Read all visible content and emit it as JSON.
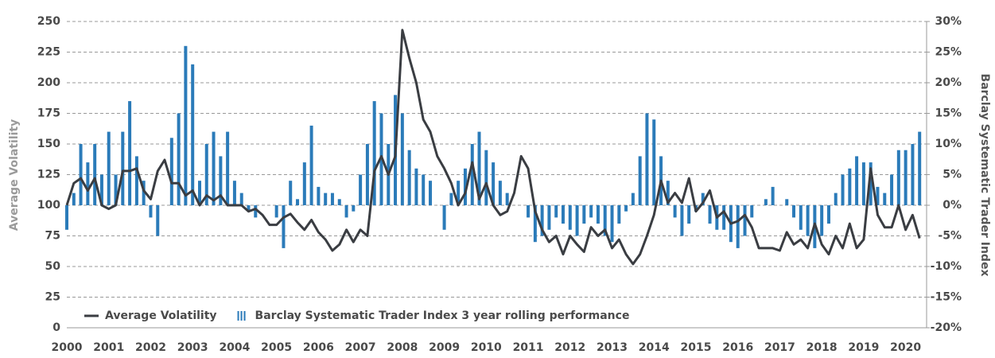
{
  "chart_data": {
    "type": "combo",
    "y_label": "Average Volatility",
    "y2_label": "Barclay Systematic Trader Index",
    "legend": "bottom-left",
    "grid": true,
    "xlim": [
      2000,
      2020.5
    ],
    "xticks": [
      2000,
      2001,
      2002,
      2003,
      2004,
      2005,
      2006,
      2007,
      2008,
      2009,
      2010,
      2011,
      2012,
      2013,
      2014,
      2015,
      2016,
      2017,
      2018,
      2019,
      2020
    ],
    "ylim": [
      0,
      250
    ],
    "yticks": [
      0,
      25,
      50,
      75,
      100,
      125,
      150,
      175,
      200,
      225,
      250
    ],
    "y2lim": [
      -20,
      30
    ],
    "y2ticks": [
      {
        "value": -20,
        "label": "-20%"
      },
      {
        "value": -15,
        "label": "-15%"
      },
      {
        "value": -10,
        "label": "-10%"
      },
      {
        "value": -5,
        "label": "-5%"
      },
      {
        "value": 0,
        "label": "0%"
      },
      {
        "value": 5,
        "label": "5%"
      },
      {
        "value": 10,
        "label": "10%"
      },
      {
        "value": 15,
        "label": "15%"
      },
      {
        "value": 20,
        "label": "20%"
      },
      {
        "value": 25,
        "label": "25%"
      },
      {
        "value": 30,
        "label": "30%"
      }
    ],
    "x": [
      2000,
      2000.167,
      2000.333,
      2000.5,
      2000.667,
      2000.833,
      2001,
      2001.167,
      2001.333,
      2001.5,
      2001.667,
      2001.833,
      2002,
      2002.167,
      2002.333,
      2002.5,
      2002.667,
      2002.833,
      2003,
      2003.167,
      2003.333,
      2003.5,
      2003.667,
      2003.833,
      2004,
      2004.167,
      2004.333,
      2004.5,
      2004.667,
      2004.833,
      2005,
      2005.167,
      2005.333,
      2005.5,
      2005.667,
      2005.833,
      2006,
      2006.167,
      2006.333,
      2006.5,
      2006.667,
      2006.833,
      2007,
      2007.167,
      2007.333,
      2007.5,
      2007.667,
      2007.833,
      2008,
      2008.167,
      2008.333,
      2008.5,
      2008.667,
      2008.833,
      2009,
      2009.167,
      2009.333,
      2009.5,
      2009.667,
      2009.833,
      2010,
      2010.167,
      2010.333,
      2010.5,
      2010.667,
      2010.833,
      2011,
      2011.167,
      2011.333,
      2011.5,
      2011.667,
      2011.833,
      2012,
      2012.167,
      2012.333,
      2012.5,
      2012.667,
      2012.833,
      2013,
      2013.167,
      2013.333,
      2013.5,
      2013.667,
      2013.833,
      2014,
      2014.167,
      2014.333,
      2014.5,
      2014.667,
      2014.833,
      2015,
      2015.167,
      2015.333,
      2015.5,
      2015.667,
      2015.833,
      2016,
      2016.167,
      2016.333,
      2016.5,
      2016.667,
      2016.833,
      2017,
      2017.167,
      2017.333,
      2017.5,
      2017.667,
      2017.833,
      2018,
      2018.167,
      2018.333,
      2018.5,
      2018.667,
      2018.833,
      2019,
      2019.167,
      2019.333,
      2019.5,
      2019.667,
      2019.833,
      2020,
      2020.167,
      2020.333
    ],
    "series": [
      {
        "name": "Barclay Systematic Trader Index 3 year rolling performance",
        "type": "bar",
        "axis": "y2",
        "color": "#2b7bb9",
        "values": [
          -4,
          2,
          10,
          7,
          10,
          5,
          12,
          5,
          12,
          17,
          8,
          4,
          -2,
          -5,
          0,
          11,
          15,
          26,
          23,
          4,
          10,
          12,
          8,
          12,
          4,
          2,
          -1,
          -2,
          0,
          0,
          -2,
          -7,
          4,
          1,
          7,
          13,
          3,
          2,
          2,
          1,
          -2,
          -1,
          5,
          10,
          17,
          15,
          10,
          18,
          15,
          9,
          6,
          5,
          4,
          0,
          -4,
          2,
          4,
          6,
          10,
          12,
          9,
          7,
          4,
          2,
          0,
          0,
          -2,
          -6,
          -5,
          -4,
          -2,
          -3,
          -4,
          -5,
          -3,
          -2,
          -3,
          -5,
          -6,
          -3,
          -1,
          2,
          8,
          15,
          14,
          8,
          4,
          -2,
          -5,
          -3,
          -1,
          2,
          -3,
          -4,
          -4,
          -6,
          -7,
          -5,
          -2,
          0,
          1,
          3,
          0,
          1,
          -2,
          -4,
          -5,
          -7,
          -5,
          -3,
          2,
          5,
          6,
          8,
          7,
          7,
          3,
          2,
          5,
          9,
          9,
          10,
          12
        ]
      },
      {
        "name": "Average Volatility",
        "type": "line",
        "axis": "y",
        "color": "#3a3d42",
        "values": [
          100,
          118,
          122,
          112,
          122,
          100,
          97,
          100,
          128,
          128,
          130,
          112,
          105,
          128,
          137,
          118,
          118,
          108,
          112,
          100,
          108,
          104,
          108,
          100,
          100,
          100,
          95,
          97,
          92,
          84,
          84,
          90,
          93,
          86,
          80,
          88,
          78,
          72,
          63,
          68,
          80,
          70,
          80,
          75,
          128,
          140,
          125,
          140,
          243,
          220,
          200,
          170,
          160,
          140,
          130,
          118,
          100,
          110,
          135,
          105,
          118,
          100,
          92,
          95,
          110,
          140,
          130,
          95,
          80,
          70,
          75,
          60,
          75,
          68,
          62,
          82,
          75,
          80,
          65,
          72,
          60,
          52,
          60,
          75,
          92,
          120,
          102,
          110,
          102,
          122,
          95,
          102,
          112,
          90,
          95,
          85,
          87,
          92,
          82,
          65,
          65,
          65,
          63,
          78,
          68,
          72,
          65,
          85,
          68,
          60,
          75,
          65,
          85,
          65,
          72,
          130,
          92,
          82,
          82,
          100,
          80,
          92,
          73
        ]
      }
    ]
  }
}
